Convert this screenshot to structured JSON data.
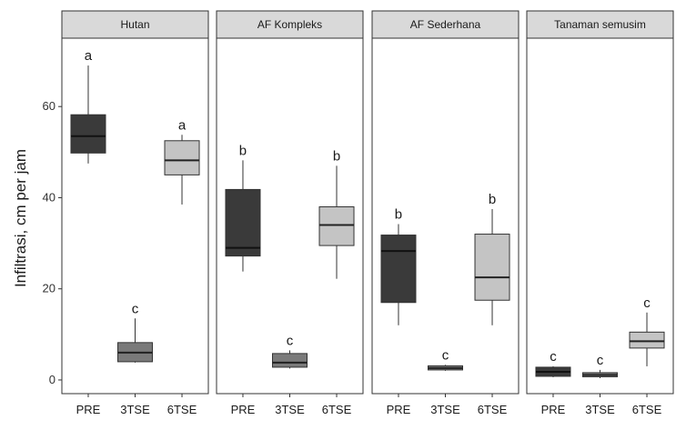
{
  "chart_data": {
    "type": "boxplot",
    "ylabel": "Infiltrasi, cm per jam",
    "ylim": [
      -3,
      75
    ],
    "yticks": [
      0,
      20,
      40,
      60
    ],
    "categories": [
      "PRE",
      "3TSE",
      "6TSE"
    ],
    "colors": {
      "PRE": "#3a3a3a",
      "3TSE": "#7a7a7a",
      "6TSE": "#c4c4c4"
    },
    "grid": false,
    "panels": [
      {
        "title": "Hutan",
        "boxes": [
          {
            "x": "PRE",
            "min": 47.5,
            "q1": 49.8,
            "median": 53.5,
            "q3": 58.2,
            "max": 69,
            "letter": "a"
          },
          {
            "x": "3TSE",
            "min": 3.8,
            "q1": 4.0,
            "median": 6.0,
            "q3": 8.2,
            "max": 13.5,
            "letter": "c"
          },
          {
            "x": "6TSE",
            "min": 38.5,
            "q1": 45.0,
            "median": 48.2,
            "q3": 52.5,
            "max": 53.8,
            "letter": "a"
          }
        ]
      },
      {
        "title": "AF Kompleks",
        "boxes": [
          {
            "x": "PRE",
            "min": 23.8,
            "q1": 27.2,
            "median": 29.0,
            "q3": 41.8,
            "max": 48.2,
            "letter": "b"
          },
          {
            "x": "3TSE",
            "min": 2.5,
            "q1": 2.8,
            "median": 3.8,
            "q3": 5.8,
            "max": 6.5,
            "letter": "c"
          },
          {
            "x": "6TSE",
            "min": 22.2,
            "q1": 29.5,
            "median": 34.0,
            "q3": 38.0,
            "max": 47.0,
            "letter": "b"
          }
        ]
      },
      {
        "title": "AF Sederhana",
        "boxes": [
          {
            "x": "PRE",
            "min": 12.0,
            "q1": 17.0,
            "median": 28.3,
            "q3": 31.8,
            "max": 34.2,
            "letter": "b"
          },
          {
            "x": "3TSE",
            "min": 2.0,
            "q1": 2.2,
            "median": 2.6,
            "q3": 3.1,
            "max": 3.3,
            "letter": "c"
          },
          {
            "x": "6TSE",
            "min": 12.0,
            "q1": 17.5,
            "median": 22.5,
            "q3": 32.0,
            "max": 37.5,
            "letter": "b"
          }
        ]
      },
      {
        "title": "Tanaman semusim",
        "boxes": [
          {
            "x": "PRE",
            "min": 0.6,
            "q1": 0.8,
            "median": 1.8,
            "q3": 2.8,
            "max": 3.0,
            "letter": "c"
          },
          {
            "x": "3TSE",
            "min": 0.4,
            "q1": 0.7,
            "median": 1.1,
            "q3": 1.6,
            "max": 2.2,
            "letter": "c"
          },
          {
            "x": "6TSE",
            "min": 3.0,
            "q1": 7.0,
            "median": 8.5,
            "q3": 10.5,
            "max": 14.8,
            "letter": "c"
          }
        ]
      }
    ]
  }
}
